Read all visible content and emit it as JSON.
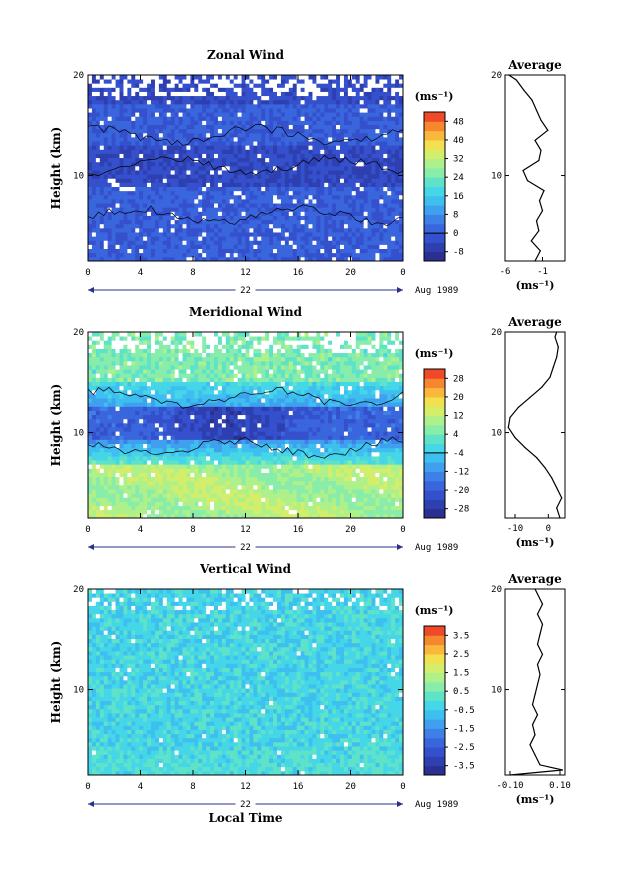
{
  "chart_data": [
    {
      "type": "heatmap",
      "title": "Zonal Wind",
      "xlabel": "",
      "ylabel": "Height (km)",
      "x_ticks": [
        "0",
        "4",
        "8",
        "12",
        "16",
        "20",
        "0"
      ],
      "y_ticks": [
        "10",
        "20"
      ],
      "xlim": [
        0,
        24
      ],
      "ylim": [
        1.5,
        20
      ],
      "date_label": "22",
      "month_label": "Aug 1989",
      "colorbar": {
        "unit": "(ms⁻¹)",
        "ticks": [
          "48",
          "40",
          "32",
          "24",
          "16",
          "8",
          "0",
          "-8"
        ],
        "range": [
          -8,
          52
        ]
      },
      "profile": {
        "title": "Average",
        "xlabel": "(ms⁻¹)",
        "x_ticks": [
          "-6",
          "-1"
        ],
        "xlim": [
          -6,
          2
        ],
        "y_ticks": [
          "10",
          "20"
        ],
        "series": [
          {
            "height": 1.5,
            "value": -2.0
          },
          {
            "height": 2.5,
            "value": -1.3
          },
          {
            "height": 3.5,
            "value": -2.5
          },
          {
            "height": 4.5,
            "value": -1.5
          },
          {
            "height": 5.5,
            "value": -1.8
          },
          {
            "height": 6.5,
            "value": -1.0
          },
          {
            "height": 7.5,
            "value": -1.4
          },
          {
            "height": 8.5,
            "value": -0.8
          },
          {
            "height": 9.5,
            "value": -3.0
          },
          {
            "height": 10.5,
            "value": -3.6
          },
          {
            "height": 11.5,
            "value": -1.5
          },
          {
            "height": 12.5,
            "value": -1.2
          },
          {
            "height": 13.5,
            "value": -2.0
          },
          {
            "height": 14.5,
            "value": -0.3
          },
          {
            "height": 15.5,
            "value": -1.2
          },
          {
            "height": 16.5,
            "value": -1.8
          },
          {
            "height": 17.5,
            "value": -2.4
          },
          {
            "height": 18.5,
            "value": -3.5
          },
          {
            "height": 19.5,
            "value": -4.5
          },
          {
            "height": 20.0,
            "value": -5.5
          }
        ]
      }
    },
    {
      "type": "heatmap",
      "title": "Meridional Wind",
      "xlabel": "",
      "ylabel": "Height (km)",
      "x_ticks": [
        "0",
        "4",
        "8",
        "12",
        "16",
        "20",
        "0"
      ],
      "y_ticks": [
        "10",
        "20"
      ],
      "xlim": [
        0,
        24
      ],
      "ylim": [
        1.5,
        20
      ],
      "date_label": "22",
      "month_label": "Aug 1989",
      "colorbar": {
        "unit": "(ms⁻¹)",
        "ticks": [
          "28",
          "20",
          "12",
          "4",
          "-4",
          "-12",
          "-20",
          "-28"
        ],
        "range": [
          -28,
          32
        ]
      },
      "profile": {
        "title": "Average",
        "xlabel": "(ms⁻¹)",
        "x_ticks": [
          "-10",
          "0"
        ],
        "xlim": [
          -13,
          5
        ],
        "y_ticks": [
          "10",
          "20"
        ],
        "series": [
          {
            "height": 1.5,
            "value": 3.5
          },
          {
            "height": 2.5,
            "value": 2.5
          },
          {
            "height": 3.5,
            "value": 4.0
          },
          {
            "height": 4.5,
            "value": 2.5
          },
          {
            "height": 5.5,
            "value": 1.0
          },
          {
            "height": 6.5,
            "value": -1.0
          },
          {
            "height": 7.5,
            "value": -3.5
          },
          {
            "height": 8.5,
            "value": -7.0
          },
          {
            "height": 9.5,
            "value": -10.0
          },
          {
            "height": 10.5,
            "value": -12.0
          },
          {
            "height": 11.5,
            "value": -11.5
          },
          {
            "height": 12.5,
            "value": -9.0
          },
          {
            "height": 13.5,
            "value": -5.5
          },
          {
            "height": 14.5,
            "value": -2.0
          },
          {
            "height": 15.5,
            "value": 0.5
          },
          {
            "height": 16.5,
            "value": 1.5
          },
          {
            "height": 17.5,
            "value": 2.5
          },
          {
            "height": 18.5,
            "value": 3.0
          },
          {
            "height": 19.5,
            "value": 2.0
          },
          {
            "height": 20.0,
            "value": 2.5
          }
        ]
      }
    },
    {
      "type": "heatmap",
      "title": "Vertical Wind",
      "xlabel": "Local Time",
      "ylabel": "Height (km)",
      "x_ticks": [
        "0",
        "4",
        "8",
        "12",
        "16",
        "20",
        "0"
      ],
      "y_ticks": [
        "10",
        "20"
      ],
      "xlim": [
        0,
        24
      ],
      "ylim": [
        1.5,
        20
      ],
      "date_label": "22",
      "month_label": "Aug 1989",
      "colorbar": {
        "unit": "(ms⁻¹)",
        "ticks": [
          "3.5",
          "2.5",
          "1.5",
          "0.5",
          "-0.5",
          "-1.5",
          "-2.5",
          "-3.5"
        ],
        "range": [
          -4,
          4
        ]
      },
      "profile": {
        "title": "Average",
        "xlabel": "(ms⁻¹)",
        "x_ticks": [
          "-0.10",
          "0.10"
        ],
        "xlim": [
          -0.12,
          0.12
        ],
        "y_ticks": [
          "10",
          "20"
        ],
        "series": [
          {
            "height": 1.5,
            "value": -0.1
          },
          {
            "height": 2.0,
            "value": 0.11
          },
          {
            "height": 2.5,
            "value": 0.02
          },
          {
            "height": 3.5,
            "value": 0.0
          },
          {
            "height": 4.5,
            "value": -0.02
          },
          {
            "height": 5.5,
            "value": 0.0
          },
          {
            "height": 6.5,
            "value": -0.01
          },
          {
            "height": 7.5,
            "value": 0.01
          },
          {
            "height": 8.5,
            "value": -0.01
          },
          {
            "height": 9.5,
            "value": 0.0
          },
          {
            "height": 10.5,
            "value": 0.01
          },
          {
            "height": 11.5,
            "value": 0.02
          },
          {
            "height": 12.5,
            "value": 0.01
          },
          {
            "height": 13.5,
            "value": 0.03
          },
          {
            "height": 14.5,
            "value": 0.01
          },
          {
            "height": 15.5,
            "value": 0.02
          },
          {
            "height": 16.5,
            "value": 0.03
          },
          {
            "height": 17.5,
            "value": 0.01
          },
          {
            "height": 18.5,
            "value": 0.03
          },
          {
            "height": 19.5,
            "value": 0.01
          },
          {
            "height": 20.0,
            "value": 0.0
          }
        ]
      }
    }
  ]
}
